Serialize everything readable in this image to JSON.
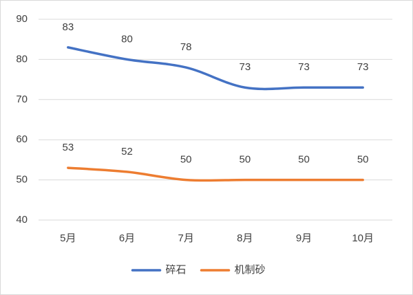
{
  "chart_data": {
    "type": "line",
    "categories": [
      "5月",
      "6月",
      "7月",
      "8月",
      "9月",
      "10月"
    ],
    "series": [
      {
        "name": "碎石",
        "color": "#4472c4",
        "values": [
          83,
          80,
          78,
          73,
          73,
          73
        ]
      },
      {
        "name": "机制砂",
        "color": "#ed7d31",
        "values": [
          53,
          52,
          50,
          50,
          50,
          50
        ]
      }
    ],
    "ylim": [
      40,
      90
    ],
    "yticks": [
      40,
      50,
      60,
      70,
      80,
      90
    ],
    "grid": true,
    "legend": "bottom",
    "smooth": true
  }
}
